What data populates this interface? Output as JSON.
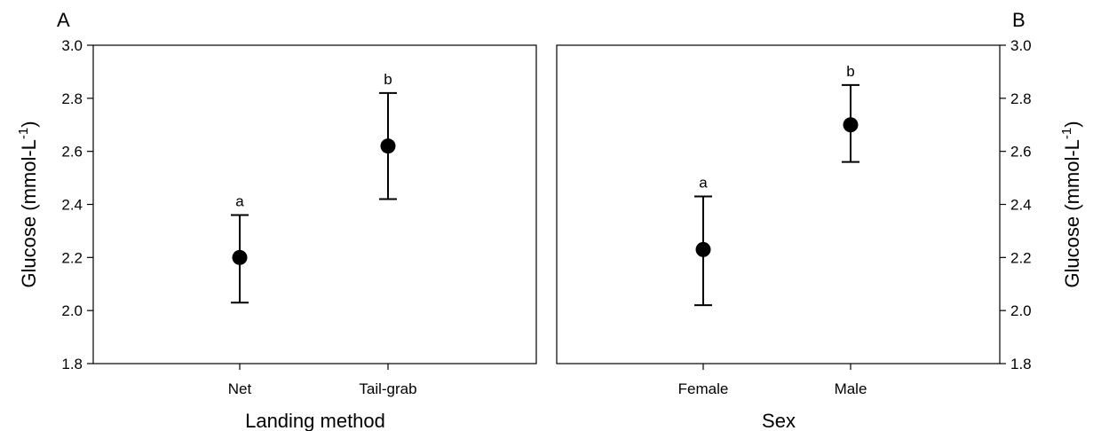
{
  "chart_data": [
    {
      "type": "scatter",
      "panel_label": "A",
      "xlabel": "Landing method",
      "ylabel": "Glucose (mmol-L",
      "ylabel_sup": "-1",
      "ylabel_close": ")",
      "y_axis_side": "left",
      "ylim": [
        1.8,
        3.0
      ],
      "yticks": [
        1.8,
        2.0,
        2.2,
        2.4,
        2.6,
        2.8,
        3.0
      ],
      "ytick_labels": [
        "1.8",
        "2.0",
        "2.2",
        "2.4",
        "2.6",
        "2.8",
        "3.0"
      ],
      "categories": [
        "Net",
        "Tail-grab"
      ],
      "values": [
        2.2,
        2.62
      ],
      "error_low": [
        2.03,
        2.42
      ],
      "error_high": [
        2.36,
        2.82
      ],
      "significance_labels": [
        "a",
        "b"
      ],
      "grid": false
    },
    {
      "type": "scatter",
      "panel_label": "B",
      "xlabel": "Sex",
      "ylabel": "Glucose (mmol-L",
      "ylabel_sup": "-1",
      "ylabel_close": ")",
      "y_axis_side": "right",
      "ylim": [
        1.8,
        3.0
      ],
      "yticks": [
        1.8,
        2.0,
        2.2,
        2.4,
        2.6,
        2.8,
        3.0
      ],
      "ytick_labels": [
        "1.8",
        "2.0",
        "2.2",
        "2.4",
        "2.6",
        "2.8",
        "3.0"
      ],
      "categories": [
        "Female",
        "Male"
      ],
      "values": [
        2.23,
        2.7
      ],
      "error_low": [
        2.02,
        2.56
      ],
      "error_high": [
        2.43,
        2.85
      ],
      "significance_labels": [
        "a",
        "b"
      ],
      "grid": false
    }
  ]
}
